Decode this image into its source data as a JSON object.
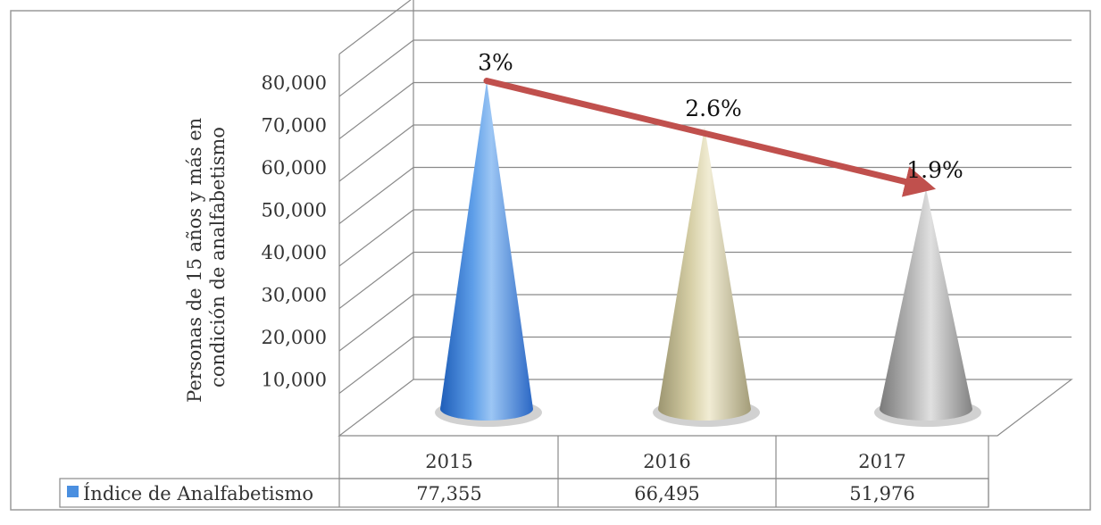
{
  "chart_data": {
    "type": "bar",
    "subtype": "3d-cone",
    "title": "",
    "ylabel": "Personas de 15 años y más en condición de analfabetismo",
    "xlabel": "",
    "categories": [
      "2015",
      "2016",
      "2017"
    ],
    "series": [
      {
        "name": "Índice de Analfabetismo",
        "values": [
          77355,
          66495,
          51976
        ],
        "value_labels": [
          "77,355",
          "66,495",
          "51,976"
        ],
        "point_colors": [
          "#4a8fe0",
          "#d8d2a8",
          "#a8a8a8"
        ]
      }
    ],
    "annotations": [
      "3%",
      "2.6%",
      "1.9%"
    ],
    "trend_arrow": {
      "from_category": "2015",
      "to_category": "2017",
      "color": "#c0504d"
    },
    "ylim": [
      0,
      80000
    ],
    "yticks": [
      10000,
      20000,
      30000,
      40000,
      50000,
      60000,
      70000,
      80000
    ],
    "ytick_labels": [
      "10,000",
      "20,000",
      "30,000",
      "40,000",
      "50,000",
      "60,000",
      "70,000",
      "80,000"
    ],
    "grid": true,
    "legend": "data-table"
  }
}
